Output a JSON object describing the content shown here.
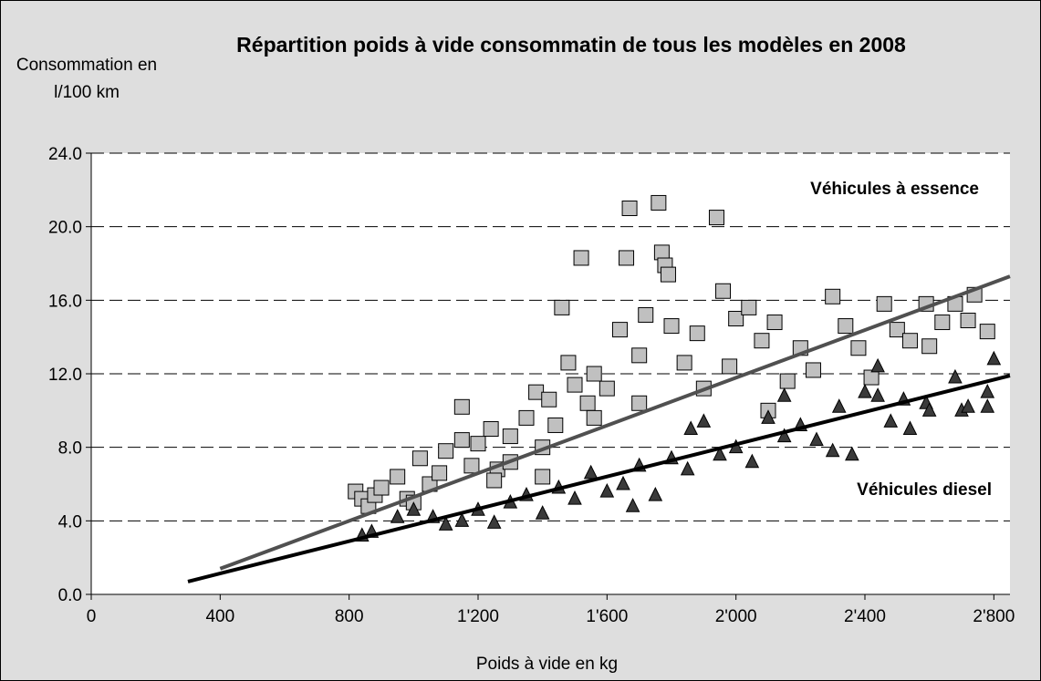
{
  "chart_data": {
    "type": "scatter",
    "title": "Répartition poids à vide consommatin de tous les modèles en 2008",
    "x_label": "Poids à vide en kg",
    "y_label": "Consommation en l/100 km",
    "xlim": [
      0,
      2850
    ],
    "ylim": [
      0,
      24
    ],
    "xticks": [
      0,
      400,
      800,
      {
        "value": 1200,
        "label": "1'200"
      },
      {
        "value": 1600,
        "label": "1'600"
      },
      {
        "value": 2000,
        "label": "2'000"
      },
      {
        "value": 2400,
        "label": "2'400"
      },
      {
        "value": 2800,
        "label": "2'800"
      }
    ],
    "yticks": [
      {
        "value": 0,
        "label": "0.0"
      },
      {
        "value": 4,
        "label": "4.0"
      },
      {
        "value": 8,
        "label": "8.0"
      },
      {
        "value": 12,
        "label": "12.0"
      },
      {
        "value": 16,
        "label": "16.0"
      },
      {
        "value": 20,
        "label": "20.0"
      },
      {
        "value": 24,
        "label": "24.0"
      }
    ],
    "grid": true,
    "series": [
      {
        "name": "Véhicules à essence",
        "marker": "square",
        "color": "#c0c0c0",
        "trend_color": "#505050",
        "x": [
          820,
          840,
          860,
          880,
          900,
          950,
          980,
          1020,
          1050,
          1080,
          1100,
          1150,
          1150,
          1180,
          1200,
          1240,
          1260,
          1300,
          1350,
          1380,
          1400,
          1420,
          1440,
          1460,
          1480,
          1500,
          1520,
          1540,
          1560,
          1600,
          1640,
          1660,
          1670,
          1700,
          1720,
          1760,
          1770,
          1780,
          1790,
          1800,
          1840,
          1880,
          1940,
          1960,
          1980,
          2000,
          2040,
          2080,
          2120,
          2160,
          2200,
          2240,
          2300,
          2340,
          2380,
          2420,
          2460,
          2500,
          2540,
          2590,
          2600,
          2640,
          2680,
          2720,
          2740,
          2780,
          1560,
          1700,
          1900,
          2100,
          1300,
          1250,
          1000,
          1400
        ],
        "values": [
          5.6,
          5.2,
          4.8,
          5.4,
          5.8,
          6.4,
          5.2,
          7.4,
          6.0,
          6.6,
          7.8,
          10.2,
          8.4,
          7.0,
          8.2,
          9.0,
          6.8,
          8.6,
          9.6,
          11.0,
          8.0,
          10.6,
          9.2,
          15.6,
          12.6,
          11.4,
          18.3,
          10.4,
          12.0,
          11.2,
          14.4,
          18.3,
          21.0,
          13.0,
          15.2,
          21.3,
          18.6,
          17.9,
          17.4,
          14.6,
          12.6,
          14.2,
          20.5,
          16.5,
          12.4,
          15.0,
          15.6,
          13.8,
          14.8,
          11.6,
          13.4,
          12.2,
          16.2,
          14.6,
          13.4,
          11.8,
          15.8,
          14.4,
          13.8,
          15.8,
          13.5,
          14.8,
          15.8,
          14.9,
          16.3,
          14.3,
          9.6,
          10.4,
          11.2,
          10.0,
          7.2,
          6.2,
          5.0,
          6.4
        ],
        "trend": {
          "x": [
            400,
            2850
          ],
          "y": [
            1.4,
            17.3
          ]
        }
      },
      {
        "name": "Véhicules diesel",
        "marker": "triangle",
        "color": "#3a3a3a",
        "trend_color": "#000000",
        "x": [
          840,
          870,
          950,
          1000,
          1060,
          1100,
          1150,
          1200,
          1250,
          1300,
          1350,
          1400,
          1450,
          1500,
          1550,
          1600,
          1650,
          1680,
          1700,
          1750,
          1800,
          1850,
          1900,
          1950,
          2000,
          2050,
          2100,
          2150,
          2200,
          2250,
          2300,
          2320,
          2360,
          2400,
          2440,
          2480,
          2520,
          2540,
          2590,
          2600,
          2680,
          2700,
          2720,
          2780,
          2780,
          2800,
          2440,
          1860,
          2150
        ],
        "values": [
          3.2,
          3.4,
          4.2,
          4.6,
          4.2,
          3.8,
          4.0,
          4.6,
          3.9,
          5.0,
          5.4,
          4.4,
          5.8,
          5.2,
          6.6,
          5.6,
          6.0,
          4.8,
          7.0,
          5.4,
          7.4,
          6.8,
          9.4,
          7.6,
          8.0,
          7.2,
          9.6,
          8.6,
          9.2,
          8.4,
          7.8,
          10.2,
          7.6,
          11.0,
          10.8,
          9.4,
          10.6,
          9.0,
          10.4,
          10.0,
          11.8,
          10.0,
          10.2,
          11.0,
          10.2,
          12.8,
          12.4,
          9.0,
          10.8
        ],
        "trend": {
          "x": [
            300,
            2850
          ],
          "y": [
            0.7,
            11.9
          ]
        }
      }
    ]
  }
}
